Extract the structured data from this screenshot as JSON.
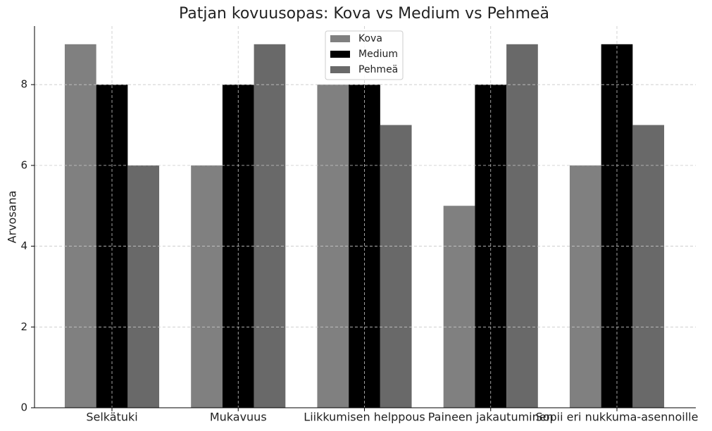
{
  "chart_data": {
    "type": "bar",
    "title": "Patjan kovuusopas: Kova vs Medium vs Pehmeä",
    "ylabel": "Arvosana",
    "categories": [
      "Selkätuki",
      "Mukavuus",
      "Liikkumisen helppous",
      "Paineen jakautuminen",
      "Sopii eri nukkuma-asennoille"
    ],
    "series": [
      {
        "name": "Kova",
        "color": "#808080",
        "values": [
          9,
          6,
          8,
          5,
          6
        ]
      },
      {
        "name": "Medium",
        "color": "#000000",
        "values": [
          8,
          8,
          8,
          8,
          9
        ]
      },
      {
        "name": "Pehmeä",
        "color": "#696969",
        "values": [
          6,
          9,
          7,
          9,
          7
        ]
      }
    ],
    "ylim": [
      0,
      9.45
    ],
    "yticks": [
      0,
      2,
      4,
      6,
      8
    ],
    "grid": true,
    "legend": "upper center"
  }
}
